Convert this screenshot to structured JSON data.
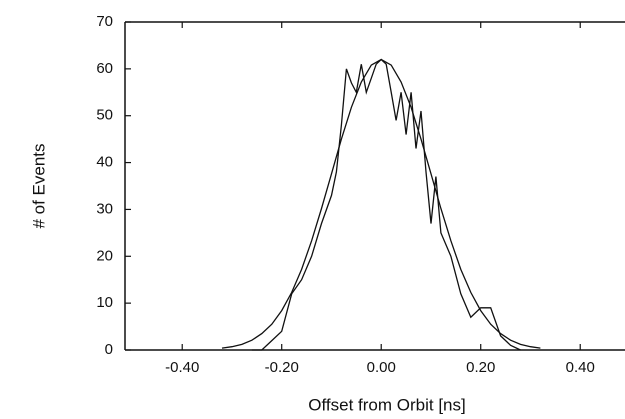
{
  "chart_data": {
    "type": "line",
    "x_label": "Offset from Orbit [ns]",
    "y_label": "# of Events",
    "xlim": [
      -0.515,
      0.49
    ],
    "ylim": [
      0,
      70
    ],
    "xticks": [
      {
        "value": -0.4,
        "label": "-0.40"
      },
      {
        "value": -0.2,
        "label": "-0.20"
      },
      {
        "value": 0,
        "label": "0.00"
      },
      {
        "value": 0.2,
        "label": "0.20"
      },
      {
        "value": 0.4,
        "label": "0.40"
      }
    ],
    "yticks": [
      0,
      10,
      20,
      30,
      40,
      50,
      60,
      70
    ],
    "series": [
      {
        "color": "#111111",
        "x": [
          -0.26,
          -0.24,
          -0.22,
          -0.2,
          -0.18,
          -0.16,
          -0.14,
          -0.12,
          -0.1,
          -0.09,
          -0.08,
          -0.07,
          -0.06,
          -0.05,
          -0.04,
          -0.03,
          -0.02,
          -0.01,
          0,
          0.01,
          0.02,
          0.03,
          0.04,
          0.05,
          0.06,
          0.07,
          0.08,
          0.09,
          0.1,
          0.11,
          0.12,
          0.14,
          0.16,
          0.18,
          0.2,
          0.22,
          0.24,
          0.26,
          0.28
        ],
        "values": [
          0,
          0,
          2,
          4,
          12,
          15,
          20,
          27,
          33,
          38,
          48,
          60,
          57,
          55,
          61,
          55,
          58,
          61,
          62,
          61,
          55,
          49,
          55,
          46,
          55,
          43,
          51,
          38,
          27,
          37,
          25,
          20,
          12,
          7,
          9,
          9,
          3,
          1,
          0
        ]
      },
      {
        "color": "#111111",
        "x": [
          -0.32,
          -0.3,
          -0.28,
          -0.26,
          -0.24,
          -0.22,
          -0.2,
          -0.18,
          -0.16,
          -0.14,
          -0.12,
          -0.1,
          -0.08,
          -0.06,
          -0.04,
          -0.02,
          0,
          0.02,
          0.04,
          0.06,
          0.08,
          0.1,
          0.12,
          0.14,
          0.16,
          0.18,
          0.2,
          0.22,
          0.24,
          0.26,
          0.28,
          0.3,
          0.32
        ],
        "values": [
          0.4,
          0.7,
          1.2,
          2.1,
          3.5,
          5.5,
          8.4,
          12.3,
          17.2,
          23.3,
          30.2,
          37.6,
          45,
          51.8,
          57.2,
          60.8,
          62,
          60.8,
          57.2,
          51.8,
          45,
          37.6,
          30.2,
          23.3,
          17.2,
          12.3,
          8.4,
          5.5,
          3.5,
          2.1,
          1.2,
          0.7,
          0.4
        ]
      }
    ]
  }
}
